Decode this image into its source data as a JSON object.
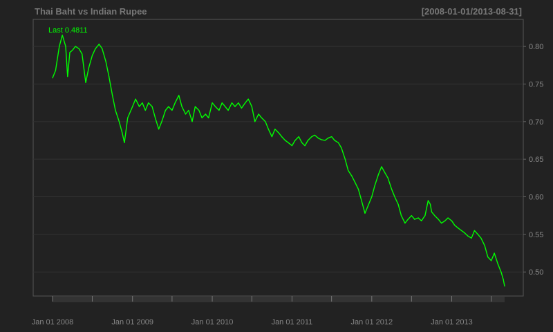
{
  "chart_data": {
    "type": "line",
    "title": "Thai Baht vs Indian Rupee",
    "date_range_label": "[2008-01-01/2013-08-31]",
    "last_label": "Last 0.4811",
    "x_tick_labels": [
      "Jan 01 2008",
      "Jan 01 2009",
      "Jan 01 2010",
      "Jan 01 2011",
      "Jan 01 2012",
      "Jan 01 2013"
    ],
    "y_tick_labels": [
      "0.80",
      "0.75",
      "0.70",
      "0.65",
      "0.60",
      "0.55",
      "0.50"
    ],
    "y_ticks": [
      0.8,
      0.75,
      0.7,
      0.65,
      0.6,
      0.55,
      0.5
    ],
    "xlim": [
      "2008-01-01",
      "2013-08-31"
    ],
    "ylim": [
      0.468,
      0.836
    ],
    "grid": true,
    "colors": {
      "background": "#222222",
      "series": "#00ff00",
      "grid": "#333333",
      "text": "#888888",
      "title": "#777777"
    },
    "series": [
      {
        "values": [
          [
            "2008-01-01",
            0.758
          ],
          [
            "2008-01-15",
            0.768
          ],
          [
            "2008-02-01",
            0.8
          ],
          [
            "2008-02-15",
            0.815
          ],
          [
            "2008-03-01",
            0.8
          ],
          [
            "2008-03-10",
            0.76
          ],
          [
            "2008-03-20",
            0.792
          ],
          [
            "2008-04-01",
            0.795
          ],
          [
            "2008-04-15",
            0.8
          ],
          [
            "2008-05-01",
            0.797
          ],
          [
            "2008-05-15",
            0.79
          ],
          [
            "2008-06-01",
            0.752
          ],
          [
            "2008-06-15",
            0.772
          ],
          [
            "2008-07-01",
            0.788
          ],
          [
            "2008-07-15",
            0.797
          ],
          [
            "2008-08-01",
            0.803
          ],
          [
            "2008-08-15",
            0.797
          ],
          [
            "2008-09-01",
            0.78
          ],
          [
            "2008-09-15",
            0.76
          ],
          [
            "2008-10-01",
            0.735
          ],
          [
            "2008-10-15",
            0.715
          ],
          [
            "2008-11-01",
            0.7
          ],
          [
            "2008-11-15",
            0.685
          ],
          [
            "2008-11-25",
            0.672
          ],
          [
            "2008-12-10",
            0.705
          ],
          [
            "2009-01-01",
            0.72
          ],
          [
            "2009-01-15",
            0.73
          ],
          [
            "2009-02-01",
            0.72
          ],
          [
            "2009-02-15",
            0.725
          ],
          [
            "2009-03-01",
            0.715
          ],
          [
            "2009-03-15",
            0.725
          ],
          [
            "2009-04-01",
            0.72
          ],
          [
            "2009-04-15",
            0.705
          ],
          [
            "2009-05-01",
            0.69
          ],
          [
            "2009-05-15",
            0.7
          ],
          [
            "2009-06-01",
            0.715
          ],
          [
            "2009-06-15",
            0.72
          ],
          [
            "2009-07-01",
            0.715
          ],
          [
            "2009-07-15",
            0.725
          ],
          [
            "2009-08-01",
            0.735
          ],
          [
            "2009-08-15",
            0.72
          ],
          [
            "2009-09-01",
            0.71
          ],
          [
            "2009-09-15",
            0.715
          ],
          [
            "2009-10-01",
            0.7
          ],
          [
            "2009-10-15",
            0.72
          ],
          [
            "2009-11-01",
            0.715
          ],
          [
            "2009-11-15",
            0.705
          ],
          [
            "2009-12-01",
            0.71
          ],
          [
            "2009-12-15",
            0.705
          ],
          [
            "2010-01-01",
            0.725
          ],
          [
            "2010-01-15",
            0.72
          ],
          [
            "2010-02-01",
            0.715
          ],
          [
            "2010-02-15",
            0.725
          ],
          [
            "2010-03-01",
            0.72
          ],
          [
            "2010-03-15",
            0.715
          ],
          [
            "2010-04-01",
            0.725
          ],
          [
            "2010-04-15",
            0.72
          ],
          [
            "2010-05-01",
            0.725
          ],
          [
            "2010-05-15",
            0.718
          ],
          [
            "2010-06-01",
            0.725
          ],
          [
            "2010-06-15",
            0.73
          ],
          [
            "2010-07-01",
            0.72
          ],
          [
            "2010-07-15",
            0.7
          ],
          [
            "2010-08-01",
            0.71
          ],
          [
            "2010-08-15",
            0.705
          ],
          [
            "2010-09-01",
            0.7
          ],
          [
            "2010-09-15",
            0.69
          ],
          [
            "2010-10-01",
            0.68
          ],
          [
            "2010-10-15",
            0.69
          ],
          [
            "2010-11-01",
            0.685
          ],
          [
            "2010-11-15",
            0.68
          ],
          [
            "2010-12-01",
            0.675
          ],
          [
            "2010-12-15",
            0.672
          ],
          [
            "2011-01-01",
            0.668
          ],
          [
            "2011-01-15",
            0.675
          ],
          [
            "2011-02-01",
            0.68
          ],
          [
            "2011-02-15",
            0.672
          ],
          [
            "2011-03-01",
            0.668
          ],
          [
            "2011-03-15",
            0.675
          ],
          [
            "2011-04-01",
            0.68
          ],
          [
            "2011-04-15",
            0.682
          ],
          [
            "2011-05-01",
            0.678
          ],
          [
            "2011-05-15",
            0.676
          ],
          [
            "2011-06-01",
            0.675
          ],
          [
            "2011-06-15",
            0.678
          ],
          [
            "2011-07-01",
            0.68
          ],
          [
            "2011-07-15",
            0.675
          ],
          [
            "2011-08-01",
            0.672
          ],
          [
            "2011-08-15",
            0.665
          ],
          [
            "2011-09-01",
            0.65
          ],
          [
            "2011-09-15",
            0.635
          ],
          [
            "2011-10-01",
            0.628
          ],
          [
            "2011-10-15",
            0.62
          ],
          [
            "2011-11-01",
            0.61
          ],
          [
            "2011-11-15",
            0.595
          ],
          [
            "2011-12-01",
            0.578
          ],
          [
            "2011-12-15",
            0.588
          ],
          [
            "2012-01-01",
            0.6
          ],
          [
            "2012-01-15",
            0.615
          ],
          [
            "2012-02-01",
            0.63
          ],
          [
            "2012-02-15",
            0.64
          ],
          [
            "2012-03-01",
            0.632
          ],
          [
            "2012-03-15",
            0.625
          ],
          [
            "2012-04-01",
            0.61
          ],
          [
            "2012-04-15",
            0.6
          ],
          [
            "2012-05-01",
            0.59
          ],
          [
            "2012-05-15",
            0.575
          ],
          [
            "2012-06-01",
            0.565
          ],
          [
            "2012-06-15",
            0.57
          ],
          [
            "2012-07-01",
            0.575
          ],
          [
            "2012-07-15",
            0.57
          ],
          [
            "2012-08-01",
            0.572
          ],
          [
            "2012-08-15",
            0.568
          ],
          [
            "2012-09-01",
            0.575
          ],
          [
            "2012-09-15",
            0.595
          ],
          [
            "2012-09-25",
            0.59
          ],
          [
            "2012-10-01",
            0.58
          ],
          [
            "2012-10-15",
            0.575
          ],
          [
            "2012-11-01",
            0.57
          ],
          [
            "2012-11-15",
            0.565
          ],
          [
            "2012-12-01",
            0.568
          ],
          [
            "2012-12-15",
            0.572
          ],
          [
            "2013-01-01",
            0.568
          ],
          [
            "2013-01-15",
            0.562
          ],
          [
            "2013-02-01",
            0.558
          ],
          [
            "2013-02-15",
            0.555
          ],
          [
            "2013-03-01",
            0.552
          ],
          [
            "2013-03-15",
            0.548
          ],
          [
            "2013-04-01",
            0.545
          ],
          [
            "2013-04-15",
            0.555
          ],
          [
            "2013-05-01",
            0.55
          ],
          [
            "2013-05-15",
            0.545
          ],
          [
            "2013-06-01",
            0.535
          ],
          [
            "2013-06-15",
            0.52
          ],
          [
            "2013-07-01",
            0.515
          ],
          [
            "2013-07-15",
            0.525
          ],
          [
            "2013-08-01",
            0.51
          ],
          [
            "2013-08-15",
            0.5
          ],
          [
            "2013-08-25",
            0.49
          ],
          [
            "2013-08-31",
            0.4811
          ]
        ]
      }
    ]
  }
}
